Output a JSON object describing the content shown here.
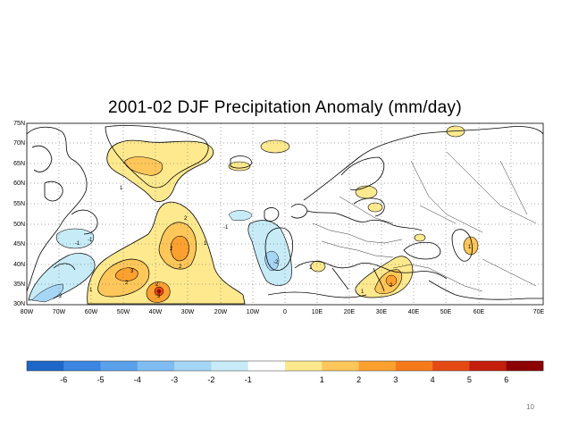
{
  "title": "2001-02 DJF Precipitation Anomaly (mm/day)",
  "map": {
    "lat_labels": [
      "75N",
      "70N",
      "65N",
      "60N",
      "55N",
      "50N",
      "45N",
      "40N",
      "35N",
      "30N"
    ],
    "lon_labels": [
      "80W",
      "70W",
      "60W",
      "50W",
      "40W",
      "30W",
      "20W",
      "10W",
      "0",
      "10E",
      "20E",
      "30E",
      "40E",
      "50E",
      "60E",
      "70E"
    ],
    "contour_labels": [
      "1",
      "2",
      "2",
      "1",
      "2",
      "3",
      "1",
      "2",
      "2",
      "3",
      "-1",
      "-1",
      "-2",
      "-2",
      "-1",
      "1",
      "1",
      "2",
      "1"
    ]
  },
  "colorbar": {
    "colors": [
      "#1e66c8",
      "#3a86e0",
      "#5aa0ea",
      "#7fbcf2",
      "#a6d6f6",
      "#c7ecf8",
      "#ffffff",
      "#ffe98e",
      "#ffc75a",
      "#fca030",
      "#f77a1a",
      "#e64a14",
      "#c41e0c",
      "#8c0000"
    ],
    "ticks": [
      "-6",
      "-5",
      "-4",
      "-3",
      "-2",
      "-1",
      "1",
      "2",
      "3",
      "4",
      "5",
      "6"
    ]
  },
  "page_number": "10"
}
